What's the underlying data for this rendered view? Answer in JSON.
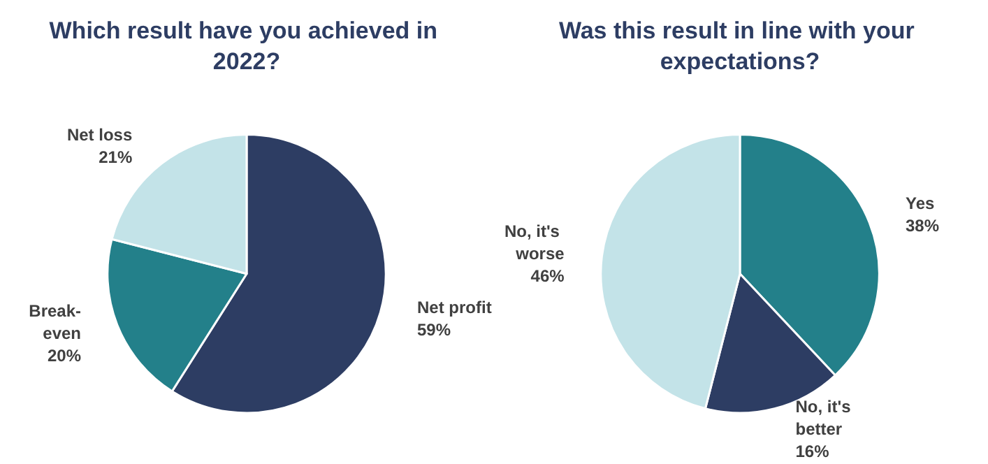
{
  "chart_data": [
    {
      "type": "pie",
      "title": "Which result have you achieved in 2022?",
      "categories": [
        "Net profit",
        "Break-even",
        "Net loss"
      ],
      "values": [
        59,
        20,
        21
      ],
      "value_labels": [
        "59%",
        "20%",
        "21%"
      ],
      "colors": [
        "#2d3d63",
        "#23808a",
        "#c3e3e8"
      ]
    },
    {
      "type": "pie",
      "title": "Was this result in line with your expectations?",
      "categories": [
        "Yes",
        "No, it's better",
        "No, it's worse"
      ],
      "values": [
        38,
        16,
        46
      ],
      "value_labels": [
        "38%",
        "16%",
        "46%"
      ],
      "colors": [
        "#23808a",
        "#2d3d63",
        "#c3e3e8"
      ]
    }
  ]
}
